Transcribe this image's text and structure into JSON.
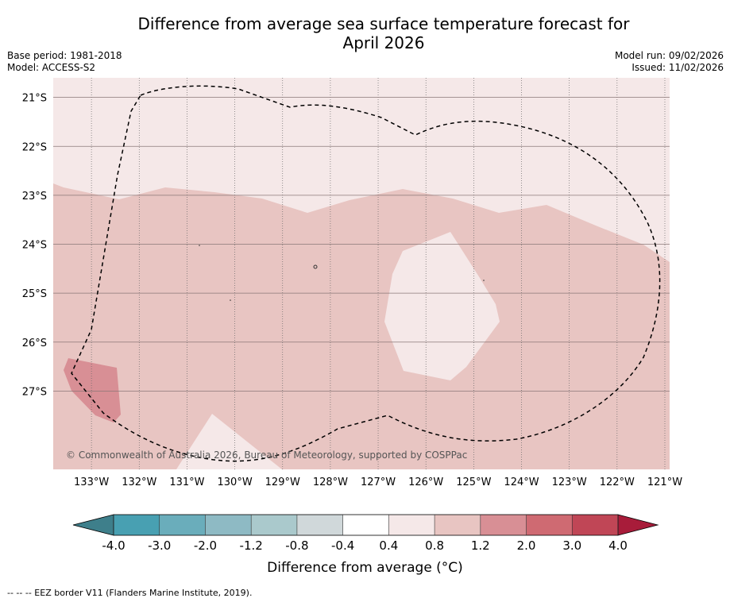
{
  "header": {
    "title_line1": "Difference from average sea surface temperature forecast for",
    "title_line2": "April 2026",
    "base_period": "Base period: 1981-2018",
    "model": "Model: ACCESS-S2",
    "model_run": "Model run: 09/02/2026",
    "issued": "Issued: 11/02/2026"
  },
  "map": {
    "lon_range": [
      -133.8,
      -120.9
    ],
    "lat_range": [
      -28.6,
      -20.6
    ],
    "lon_ticks": [
      {
        "value": -133,
        "label": "133°W"
      },
      {
        "value": -132,
        "label": "132°W"
      },
      {
        "value": -131,
        "label": "131°W"
      },
      {
        "value": -130,
        "label": "130°W"
      },
      {
        "value": -129,
        "label": "129°W"
      },
      {
        "value": -128,
        "label": "128°W"
      },
      {
        "value": -127,
        "label": "127°W"
      },
      {
        "value": -126,
        "label": "126°W"
      },
      {
        "value": -125,
        "label": "125°W"
      },
      {
        "value": -124,
        "label": "124°W"
      },
      {
        "value": -123,
        "label": "123°W"
      },
      {
        "value": -122,
        "label": "122°W"
      },
      {
        "value": -121,
        "label": "121°W"
      }
    ],
    "lat_ticks": [
      {
        "value": -21,
        "label": "21°S"
      },
      {
        "value": -22,
        "label": "22°S"
      },
      {
        "value": -23,
        "label": "23°S"
      },
      {
        "value": -24,
        "label": "24°S"
      },
      {
        "value": -25,
        "label": "25°S"
      },
      {
        "value": -26,
        "label": "26°S"
      },
      {
        "value": -27,
        "label": "27°S"
      }
    ],
    "copyright": "© Commonwealth of Australia 2026, Bureau of Meteorology, supported by COSPPac"
  },
  "colorbar": {
    "ticks": [
      "-4.0",
      "-3.0",
      "-2.0",
      "-1.2",
      "-0.8",
      "-0.4",
      "0.4",
      "0.8",
      "1.2",
      "2.0",
      "3.0",
      "4.0"
    ],
    "colors": [
      "#48a0b2",
      "#6aadbb",
      "#8ebac4",
      "#aac9cc",
      "#d0d8da",
      "#ffffff",
      "#f5e8e8",
      "#e8c5c2",
      "#d88f95",
      "#cf6a72",
      "#c04656"
    ],
    "extend_low": "#3e7f8b",
    "extend_high": "#a81c3a",
    "label": "Difference from average (°C)"
  },
  "footnote": "--  --  -- EEZ border V11 (Flanders Marine Institute, 2019)."
}
